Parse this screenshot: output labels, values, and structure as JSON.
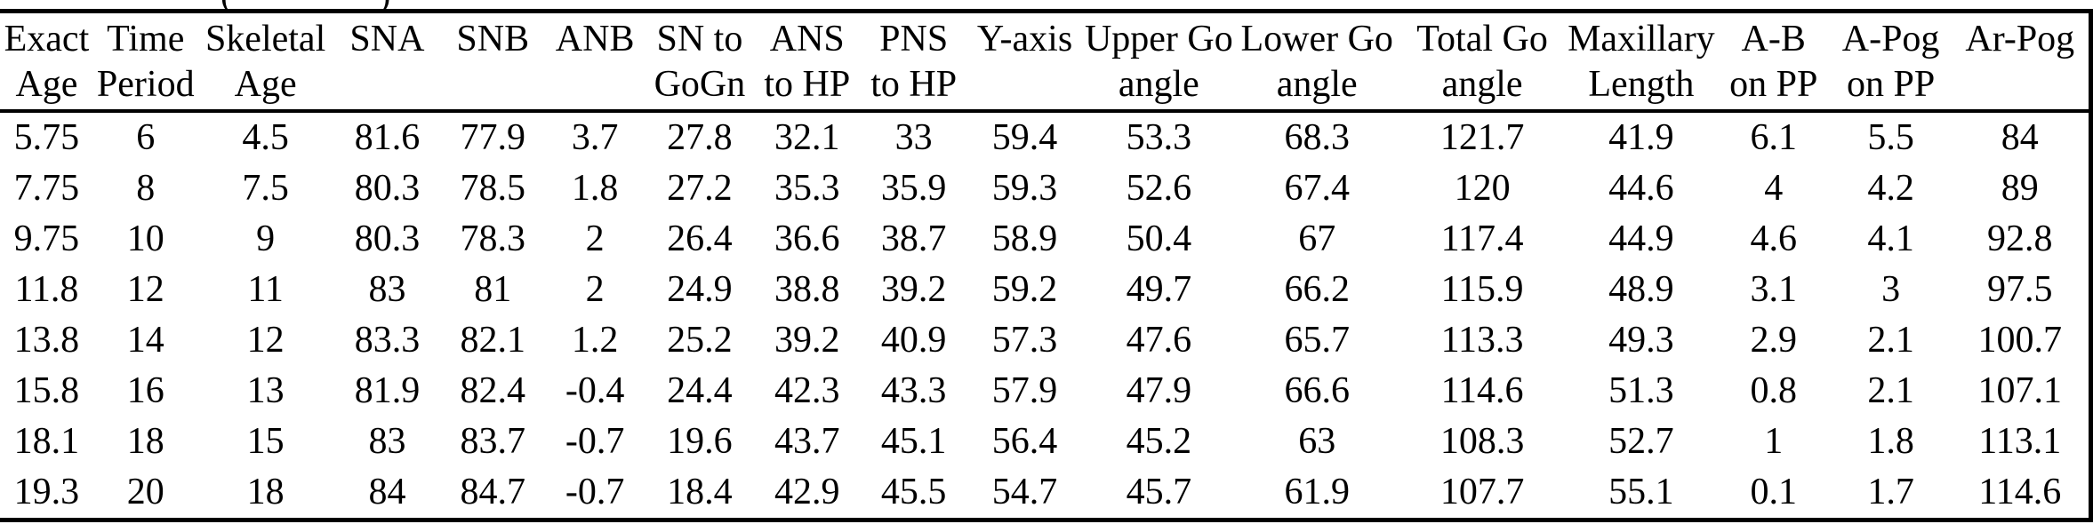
{
  "page": {
    "background_color": "#ffffff",
    "text_color": "#000000"
  },
  "cropped_caption_fragments": {
    "left_glyph": "(",
    "right_glyph": ")"
  },
  "table": {
    "columns": [
      {
        "id": "exact-age",
        "line1": "Exact",
        "line2": "Age"
      },
      {
        "id": "time-period",
        "line1": "Time",
        "line2": "Period"
      },
      {
        "id": "skeletal-age",
        "line1": "Skeletal",
        "line2": "Age"
      },
      {
        "id": "sna",
        "line1": "SNA",
        "line2": ""
      },
      {
        "id": "snb",
        "line1": "SNB",
        "line2": ""
      },
      {
        "id": "anb",
        "line1": "ANB",
        "line2": ""
      },
      {
        "id": "sn-to-gogn",
        "line1": "SN to",
        "line2": "GoGn"
      },
      {
        "id": "ans-to-hp",
        "line1": "ANS",
        "line2": "to HP"
      },
      {
        "id": "pns-to-hp",
        "line1": "PNS",
        "line2": "to HP"
      },
      {
        "id": "y-axis",
        "line1": "Y-axis",
        "line2": ""
      },
      {
        "id": "upper-go-angle",
        "line1": "Upper Go",
        "line2": "angle"
      },
      {
        "id": "lower-go-angle",
        "line1": "Lower Go",
        "line2": "angle"
      },
      {
        "id": "total-go-angle",
        "line1": "Total Go",
        "line2": "angle"
      },
      {
        "id": "maxillary-length",
        "line1": "Maxillary",
        "line2": "Length"
      },
      {
        "id": "a-b-on-pp",
        "line1": "A-B",
        "line2": "on PP"
      },
      {
        "id": "a-pog-on-pp",
        "line1": "A-Pog",
        "line2": "on PP"
      },
      {
        "id": "ar-pog",
        "line1": "Ar-Pog",
        "line2": ""
      }
    ],
    "rows": [
      [
        "5.75",
        "6",
        "4.5",
        "81.6",
        "77.9",
        "3.7",
        "27.8",
        "32.1",
        "33",
        "59.4",
        "53.3",
        "68.3",
        "121.7",
        "41.9",
        "6.1",
        "5.5",
        "84"
      ],
      [
        "7.75",
        "8",
        "7.5",
        "80.3",
        "78.5",
        "1.8",
        "27.2",
        "35.3",
        "35.9",
        "59.3",
        "52.6",
        "67.4",
        "120",
        "44.6",
        "4",
        "4.2",
        "89"
      ],
      [
        "9.75",
        "10",
        "9",
        "80.3",
        "78.3",
        "2",
        "26.4",
        "36.6",
        "38.7",
        "58.9",
        "50.4",
        "67",
        "117.4",
        "44.9",
        "4.6",
        "4.1",
        "92.8"
      ],
      [
        "11.8",
        "12",
        "11",
        "83",
        "81",
        "2",
        "24.9",
        "38.8",
        "39.2",
        "59.2",
        "49.7",
        "66.2",
        "115.9",
        "48.9",
        "3.1",
        "3",
        "97.5"
      ],
      [
        "13.8",
        "14",
        "12",
        "83.3",
        "82.1",
        "1.2",
        "25.2",
        "39.2",
        "40.9",
        "57.3",
        "47.6",
        "65.7",
        "113.3",
        "49.3",
        "2.9",
        "2.1",
        "100.7"
      ],
      [
        "15.8",
        "16",
        "13",
        "81.9",
        "82.4",
        "-0.4",
        "24.4",
        "42.3",
        "43.3",
        "57.9",
        "47.9",
        "66.6",
        "114.6",
        "51.3",
        "0.8",
        "2.1",
        "107.1"
      ],
      [
        "18.1",
        "18",
        "15",
        "83",
        "83.7",
        "-0.7",
        "19.6",
        "43.7",
        "45.1",
        "56.4",
        "45.2",
        "63",
        "108.3",
        "52.7",
        "1",
        "1.8",
        "113.1"
      ],
      [
        "19.3",
        "20",
        "18",
        "84",
        "84.7",
        "-0.7",
        "18.4",
        "42.9",
        "45.5",
        "54.7",
        "45.7",
        "61.9",
        "107.7",
        "55.1",
        "0.1",
        "1.7",
        "114.6"
      ]
    ]
  }
}
